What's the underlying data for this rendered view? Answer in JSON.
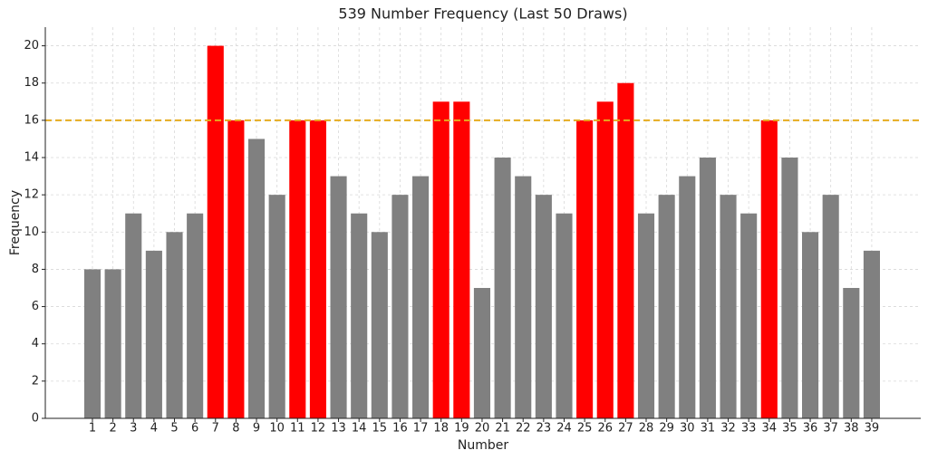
{
  "chart_data": {
    "type": "bar",
    "title": "539 Number Frequency (Last 50 Draws)",
    "x_label": "Number",
    "y_label": "Frequency",
    "categories": [
      "1",
      "2",
      "3",
      "4",
      "5",
      "6",
      "7",
      "8",
      "9",
      "10",
      "11",
      "12",
      "13",
      "14",
      "15",
      "16",
      "17",
      "18",
      "19",
      "20",
      "21",
      "22",
      "23",
      "24",
      "25",
      "26",
      "27",
      "28",
      "29",
      "30",
      "31",
      "32",
      "33",
      "34",
      "35",
      "36",
      "37",
      "38",
      "39"
    ],
    "values": [
      8,
      8,
      11,
      9,
      10,
      11,
      20,
      16,
      15,
      12,
      16,
      16,
      13,
      11,
      10,
      12,
      13,
      17,
      17,
      7,
      14,
      13,
      12,
      11,
      16,
      17,
      18,
      11,
      12,
      13,
      14,
      12,
      11,
      16,
      14,
      10,
      12,
      7,
      9
    ],
    "color": "#808080",
    "highlight_color": "#ff0000",
    "threshold_line": {
      "value": 16,
      "color": "#e6ac1e",
      "style": "dashed"
    },
    "ylim": [
      0,
      21
    ],
    "yticks": [
      0,
      2,
      4,
      6,
      8,
      10,
      12,
      14,
      16,
      18,
      20
    ],
    "grid": true
  }
}
